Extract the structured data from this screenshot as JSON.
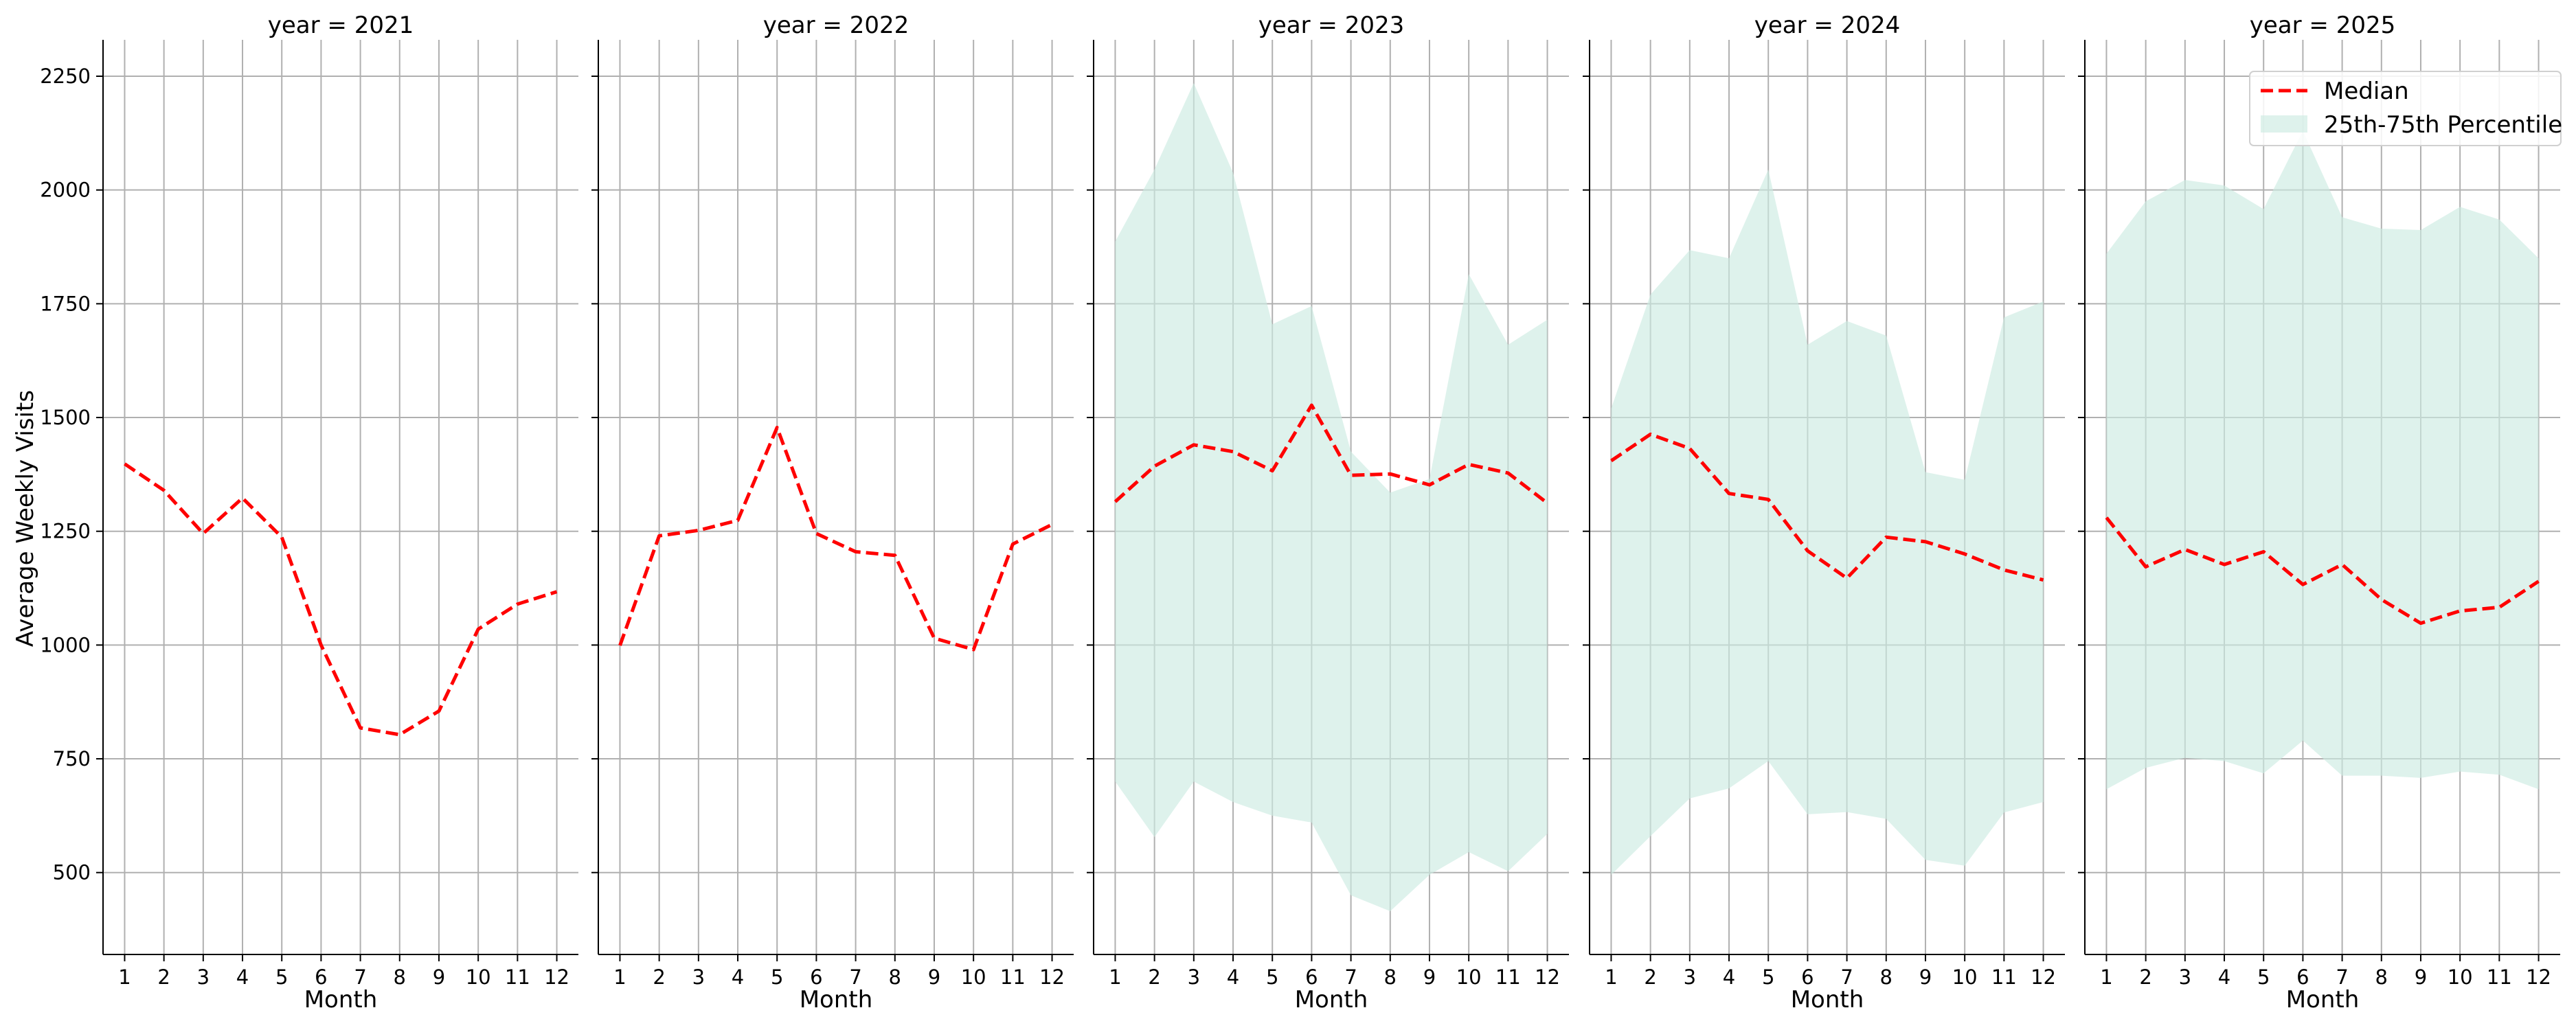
{
  "chart_data": {
    "type": "line",
    "ylabel": "Average Weekly Visits",
    "xlabel": "Month",
    "ylim": [
      320,
      2330
    ],
    "xlim": [
      0.45,
      12.55
    ],
    "yticks": [
      500,
      750,
      1000,
      1250,
      1500,
      1750,
      2000,
      2250
    ],
    "xticks": [
      1,
      2,
      3,
      4,
      5,
      6,
      7,
      8,
      9,
      10,
      11,
      12
    ],
    "grid": true,
    "legend": {
      "location": "top-right",
      "entries": [
        {
          "label": "Median",
          "style": "dashed-line"
        },
        {
          "label": "25th-75th Percentile",
          "style": "band"
        }
      ]
    },
    "colors": {
      "median": "#ff0000",
      "band": "#cdebe2",
      "grid": "#b0b0b0",
      "axis": "#000000"
    },
    "panels": [
      {
        "title": "year = 2021",
        "median": [
          1398,
          1340,
          1245,
          1323,
          1237,
          1000,
          818,
          803,
          855,
          1035,
          1090,
          1117
        ],
        "p25": null,
        "p75": null
      },
      {
        "title": "year = 2022",
        "median": [
          999,
          1240,
          1252,
          1274,
          1478,
          1245,
          1205,
          1197,
          1015,
          990,
          1222,
          1265
        ],
        "p25": null,
        "p75": null
      },
      {
        "title": "year = 2023",
        "median": [
          1315,
          1393,
          1440,
          1425,
          1383,
          1527,
          1373,
          1376,
          1352,
          1397,
          1378,
          1312
        ],
        "p25": [
          700,
          578,
          700,
          655,
          625,
          610,
          450,
          415,
          495,
          545,
          503,
          585
        ],
        "p75": [
          1887,
          2045,
          2235,
          2038,
          1705,
          1745,
          1425,
          1335,
          1365,
          1815,
          1660,
          1715
        ]
      },
      {
        "title": "year = 2024",
        "median": [
          1405,
          1463,
          1432,
          1333,
          1320,
          1207,
          1147,
          1237,
          1227,
          1200,
          1165,
          1143
        ],
        "p25": [
          495,
          580,
          663,
          685,
          745,
          628,
          633,
          618,
          528,
          515,
          632,
          655
        ],
        "p75": [
          1520,
          1770,
          1868,
          1850,
          2045,
          1660,
          1712,
          1680,
          1380,
          1363,
          1720,
          1755
        ]
      },
      {
        "title": "year = 2025",
        "median": [
          1280,
          1172,
          1210,
          1177,
          1205,
          1133,
          1177,
          1100,
          1048,
          1075,
          1083,
          1140
        ],
        "p25": [
          683,
          730,
          752,
          745,
          718,
          790,
          713,
          713,
          708,
          722,
          715,
          683
        ],
        "p75": [
          1860,
          1975,
          2022,
          2010,
          1958,
          2130,
          1940,
          1915,
          1912,
          1963,
          1935,
          1850
        ]
      }
    ]
  }
}
